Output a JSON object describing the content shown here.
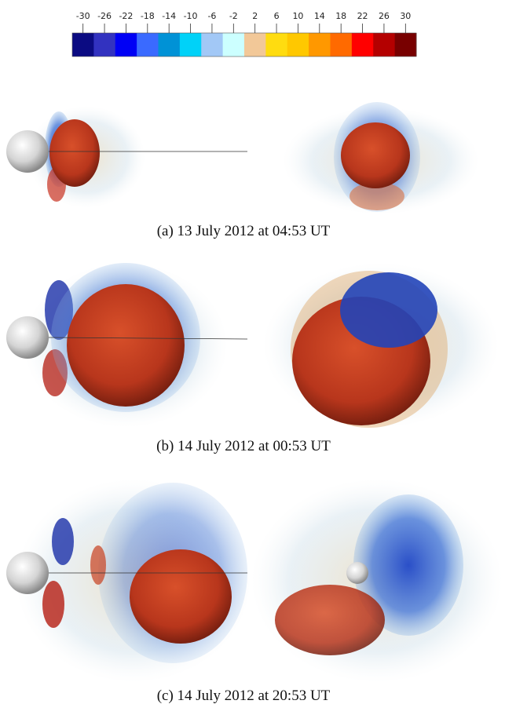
{
  "colorbar": {
    "ticks": [
      -30,
      -26,
      -22,
      -18,
      -14,
      -10,
      -6,
      -2,
      2,
      6,
      10,
      14,
      18,
      22,
      26,
      30
    ],
    "colors": [
      "#0b0b82",
      "#3232c0",
      "#0000f5",
      "#3a6aff",
      "#0092d6",
      "#00d2f8",
      "#a2c8f6",
      "#ccffff",
      "#f2c898",
      "#ffdc10",
      "#ffc800",
      "#ff9800",
      "#ff6a00",
      "#ff0000",
      "#b40000",
      "#780000"
    ]
  },
  "captions": [
    "(a) 13 July 2012 at 04:53 UT",
    "(b) 14 July 2012 at 00:53 UT",
    "(c) 14 July 2012 at 20:53 UT"
  ]
}
